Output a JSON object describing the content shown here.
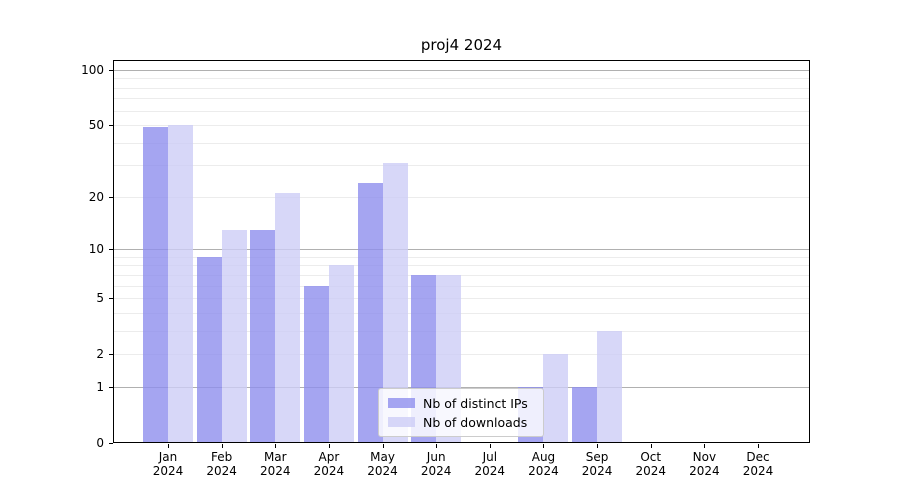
{
  "title": "proj4 2024",
  "chart_data": {
    "type": "bar",
    "title": "proj4 2024",
    "categories": [
      "Jan",
      "Feb",
      "Mar",
      "Apr",
      "May",
      "Jun",
      "Jul",
      "Aug",
      "Sep",
      "Oct",
      "Nov",
      "Dec"
    ],
    "x_year_label": "2024",
    "series": [
      {
        "name": "Nb of distinct IPs",
        "color": "#8f8fee",
        "values": [
          49,
          9,
          13,
          6,
          24,
          7,
          0,
          1,
          1,
          0,
          0,
          0
        ]
      },
      {
        "name": "Nb of downloads",
        "color": "#cdcdf6",
        "values": [
          50,
          13,
          21,
          8,
          31,
          7,
          0,
          2,
          3,
          0,
          0,
          0
        ]
      }
    ],
    "y_scale": "log10(1+x)",
    "y_ticks": [
      0,
      1,
      2,
      5,
      10,
      20,
      50,
      100
    ],
    "y_major_gridlines": [
      1,
      10,
      100
    ],
    "y_minor_gridlines": [
      2,
      3,
      4,
      5,
      6,
      7,
      8,
      9,
      20,
      30,
      40,
      50,
      60,
      70,
      80,
      90
    ],
    "ylim": [
      0,
      113
    ],
    "grid": true,
    "legend": {
      "position": "lower-center"
    }
  }
}
